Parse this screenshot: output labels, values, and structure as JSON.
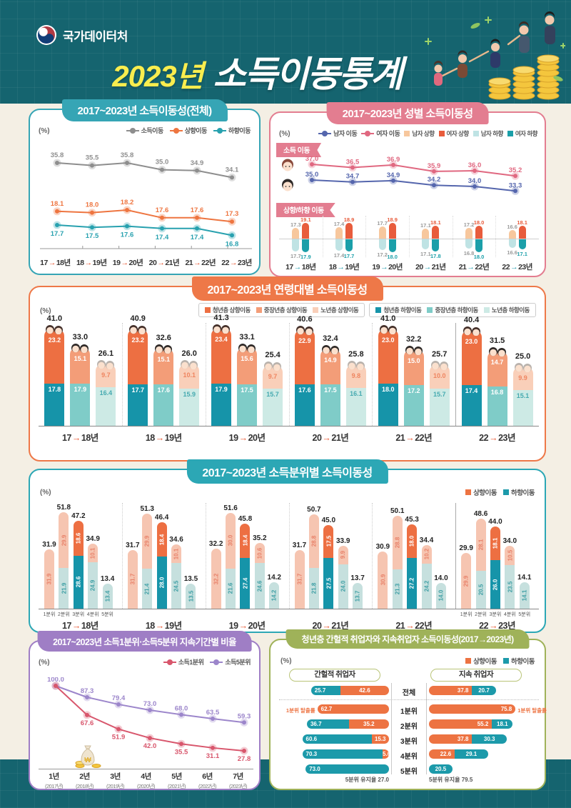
{
  "page": {
    "bg_teal": "#15646f",
    "bg_beige": "#f4efe4"
  },
  "header": {
    "agency": "국가데이터처",
    "title_year": "2023년",
    "title_main": "소득이동통계",
    "title_year_color": "#f9ed4e"
  },
  "panels": {
    "p1": {
      "title": "2017~2023년 소득이동성(전체)",
      "unit": "(%)",
      "accent": "#36a5b5",
      "arrow": "#e8542f"
    },
    "p2": {
      "title": "2017~2023년 성별 소득이동성",
      "unit": "(%)",
      "accent": "#e37d90",
      "arrow": "#2aa0b0",
      "badge_line": "소득 이동",
      "badge_bar": "상향/하향 이동"
    },
    "p3": {
      "title": "2017~2023년 연령대별 소득이동성",
      "unit": "(%)",
      "accent": "#ee7848",
      "arrow": "#e8542f"
    },
    "p4": {
      "title": "2017~2023년 소득분위별 소득이동성",
      "unit": "(%)",
      "accent": "#2ca7b5",
      "arrow": "#e8542f"
    },
    "p5": {
      "title": "2017~2023년 소득1분위·소득5분위 지속기간별 비율",
      "unit": "(%)",
      "accent": "#9f7ec5"
    },
    "p6": {
      "title": "청년층 간헐적 취업자와 지속취업자 소득이동성(2017→2023년)",
      "unit": "(%)",
      "accent": "#9fb259",
      "col_left": "간헐적 취업자",
      "col_right": "지속 취업자",
      "keep_left": "5분위 유지율 27.0",
      "keep_right": "5분위 유지율 79.5",
      "escape_label": "1분위 탈출률"
    }
  },
  "chart_data": [
    {
      "panel": "p1",
      "type": "line",
      "title": "2017~2023년 소득이동성(전체)",
      "unit": "%",
      "categories": [
        "17→18년",
        "18→19년",
        "19→20년",
        "20→21년",
        "21→22년",
        "22→23년"
      ],
      "series": [
        {
          "name": "소득이동",
          "color": "#8e8e8e",
          "values": [
            35.8,
            35.5,
            35.8,
            35.0,
            34.9,
            34.1
          ]
        },
        {
          "name": "상향이동",
          "color": "#ee7540",
          "values": [
            18.1,
            18.0,
            18.2,
            17.6,
            17.6,
            17.3
          ]
        },
        {
          "name": "하향이동",
          "color": "#28a1af",
          "values": [
            17.7,
            17.5,
            17.6,
            17.4,
            17.4,
            16.8
          ]
        }
      ]
    },
    {
      "panel": "p2",
      "type": "line+bar",
      "title": "2017~2023년 성별 소득이동성",
      "unit": "%",
      "categories": [
        "17→18년",
        "18→19년",
        "19→20년",
        "20→21년",
        "21→22년",
        "22→23년"
      ],
      "legend": [
        {
          "label": "남자 이동",
          "color": "#5566ad",
          "type": "dot"
        },
        {
          "label": "여자 이동",
          "color": "#e06880",
          "type": "dot"
        },
        {
          "label": "남자 상향",
          "color": "#f7c79d",
          "type": "square"
        },
        {
          "label": "여자 상향",
          "color": "#e85c3c",
          "type": "square"
        },
        {
          "label": "남자 하향",
          "color": "#bfe3e4",
          "type": "square"
        },
        {
          "label": "여자 하향",
          "color": "#1b9fa9",
          "type": "square"
        }
      ],
      "line_series": [
        {
          "name": "여자 이동",
          "color": "#e06880",
          "values": [
            37.0,
            36.5,
            36.9,
            35.9,
            36.0,
            35.2
          ]
        },
        {
          "name": "남자 이동",
          "color": "#5566ad",
          "values": [
            35.0,
            34.7,
            34.9,
            34.2,
            34.0,
            33.3
          ]
        }
      ],
      "bar_series": {
        "male_up": [
          17.3,
          17.4,
          17.7,
          17.1,
          17.2,
          16.6
        ],
        "female_up": [
          19.1,
          18.9,
          18.9,
          18.1,
          18.0,
          18.1
        ],
        "male_down": [
          17.7,
          17.4,
          17.2,
          17.1,
          16.8,
          16.6
        ],
        "female_down": [
          17.9,
          17.7,
          18.0,
          17.8,
          18.0,
          17.1
        ]
      },
      "bar_colors": {
        "male_up": "#f7c79d",
        "female_up": "#e85c3c",
        "male_down": "#bfe3e4",
        "female_down": "#1b9fa9",
        "male_label": "#9a9a9a",
        "female_up_label": "#e85c3c",
        "female_down_label": "#1b9fa9"
      }
    },
    {
      "panel": "p3",
      "type": "stacked-bar",
      "title": "2017~2023년 연령대별 소득이동성",
      "unit": "%",
      "categories": [
        "17→18년",
        "18→19년",
        "19→20년",
        "20→21년",
        "21→22년",
        "22→23년"
      ],
      "legend_up": [
        {
          "label": "청년층 상향이동",
          "color": "#ed6f42"
        },
        {
          "label": "중장년층 상향이동",
          "color": "#f39d78"
        },
        {
          "label": "노년층 상향이동",
          "color": "#f9cfb9"
        }
      ],
      "legend_down": [
        {
          "label": "청년층 하향이동",
          "color": "#1694a9"
        },
        {
          "label": "중장년층 하향이동",
          "color": "#7fccc8"
        },
        {
          "label": "노년층 하향이동",
          "color": "#cdeae5"
        }
      ],
      "groups": [
        {
          "name": "청년층",
          "up_color": "#ed6f42",
          "down_color": "#1694a9",
          "hair": "#44302a",
          "up_label": "#ffffff",
          "down_label": "#ffffff",
          "totals": [
            41.0,
            40.9,
            41.3,
            40.6,
            41.0,
            40.4
          ],
          "up": [
            23.2,
            23.2,
            23.4,
            22.9,
            23.0,
            23.0
          ],
          "down": [
            17.8,
            17.7,
            17.9,
            17.6,
            18.0,
            17.4
          ]
        },
        {
          "name": "중장년층",
          "up_color": "#f39d78",
          "down_color": "#7fccc8",
          "hair": "#2f2a28",
          "up_label": "#ffffff",
          "down_label": "#ffffff",
          "totals": [
            33.0,
            32.6,
            33.1,
            32.4,
            32.2,
            31.5
          ],
          "up": [
            15.1,
            15.1,
            15.6,
            14.9,
            15.0,
            14.7
          ],
          "down": [
            17.9,
            17.6,
            17.5,
            17.5,
            17.2,
            16.8
          ]
        },
        {
          "name": "노년층",
          "up_color": "#f9cfb9",
          "down_color": "#cdeae5",
          "hair": "#b9b2ac",
          "up_label": "#ef8560",
          "down_label": "#46aab0",
          "totals": [
            26.1,
            26.0,
            25.4,
            25.8,
            25.7,
            25.0
          ],
          "up": [
            9.7,
            10.1,
            9.7,
            9.8,
            10.0,
            9.9
          ],
          "down": [
            16.4,
            15.9,
            15.7,
            16.1,
            15.7,
            15.1
          ]
        }
      ]
    },
    {
      "panel": "p4",
      "type": "stacked-bar",
      "title": "2017~2023년 소득분위별 소득이동성",
      "unit": "%",
      "legend": [
        {
          "label": "상향이동",
          "color": "#ed7342"
        },
        {
          "label": "하향이동",
          "color": "#1c9aaa"
        }
      ],
      "quintiles": [
        "1분위",
        "2분위",
        "3분위",
        "4분위",
        "5분위"
      ],
      "colors": {
        "up_pale": "#f6c5b1",
        "up_strong": "#ed6f42",
        "down_pale": "#c6e0de",
        "down_strong": "#1694a9",
        "up_pale_label": "#e8826a",
        "down_pale_label": "#3f9fa5"
      },
      "years": [
        {
          "year": "17→18년",
          "totals": [
            31.9,
            51.8,
            47.2,
            34.9,
            13.4
          ],
          "up": [
            31.9,
            29.9,
            18.6,
            10.1,
            0
          ],
          "down": [
            0,
            21.9,
            28.6,
            24.9,
            13.4
          ]
        },
        {
          "year": "18→19년",
          "totals": [
            31.7,
            51.3,
            46.4,
            34.6,
            13.5
          ],
          "up": [
            31.7,
            29.9,
            18.4,
            10.1,
            0
          ],
          "down": [
            0,
            21.4,
            28.0,
            24.5,
            13.5
          ]
        },
        {
          "year": "19→20년",
          "totals": [
            32.2,
            51.6,
            45.8,
            35.2,
            14.2
          ],
          "up": [
            32.2,
            30.0,
            18.4,
            10.6,
            0
          ],
          "down": [
            0,
            21.6,
            27.4,
            24.6,
            14.2
          ]
        },
        {
          "year": "20→21년",
          "totals": [
            31.7,
            50.7,
            45.0,
            33.9,
            13.7
          ],
          "up": [
            31.7,
            28.8,
            17.5,
            9.9,
            0
          ],
          "down": [
            0,
            21.8,
            27.5,
            24.0,
            13.7
          ]
        },
        {
          "year": "21→22년",
          "totals": [
            30.9,
            50.1,
            45.3,
            34.4,
            14.0
          ],
          "up": [
            30.9,
            28.8,
            18.0,
            10.2,
            0
          ],
          "down": [
            0,
            21.3,
            27.2,
            24.2,
            14.0
          ]
        },
        {
          "year": "22→23년",
          "totals": [
            29.9,
            48.6,
            44.0,
            34.0,
            14.1
          ],
          "up": [
            29.9,
            28.1,
            18.1,
            10.5,
            0
          ],
          "down": [
            0,
            20.5,
            26.0,
            23.5,
            14.1
          ]
        }
      ]
    },
    {
      "panel": "p5",
      "type": "line",
      "title": "2017~2023년 소득1분위·소득5분위 지속기간별 비율",
      "unit": "%",
      "categories": [
        "1년",
        "2년",
        "3년",
        "4년",
        "5년",
        "6년",
        "7년"
      ],
      "sub_categories": [
        "(2017년)",
        "(2018년)",
        "(2019년)",
        "(2020년)",
        "(2021년)",
        "(2022년)",
        "(2023년)"
      ],
      "series": [
        {
          "name": "소득1분위",
          "color": "#d8566c",
          "values": [
            100.0,
            67.6,
            51.9,
            42.0,
            35.5,
            31.1,
            27.8
          ]
        },
        {
          "name": "소득5분위",
          "color": "#9c86cb",
          "values": [
            100.0,
            87.3,
            79.4,
            73.0,
            68.0,
            63.5,
            59.3
          ]
        }
      ]
    },
    {
      "panel": "p6",
      "type": "hbar",
      "title": "청년층 간헐적 취업자와 지속취업자 소득이동성(2017→2023년)",
      "unit": "%",
      "rows": [
        "전체",
        "1분위",
        "2분위",
        "3분위",
        "4분위",
        "5분위"
      ],
      "legend": [
        {
          "label": "상향이동",
          "color": "#ed7342"
        },
        {
          "label": "하향이동",
          "color": "#1c9aaa"
        }
      ],
      "colors": {
        "up": "#ed7342",
        "down": "#1c9aaa"
      },
      "intermittent": {
        "up": [
          42.6,
          62.7,
          35.2,
          15.3,
          5.6,
          null
        ],
        "down": [
          25.7,
          null,
          36.7,
          60.6,
          70.3,
          73.0
        ]
      },
      "persistent": {
        "up": [
          37.8,
          75.8,
          55.2,
          37.8,
          22.6,
          null
        ],
        "down": [
          20.7,
          null,
          18.1,
          30.3,
          29.1,
          20.5
        ]
      }
    }
  ]
}
